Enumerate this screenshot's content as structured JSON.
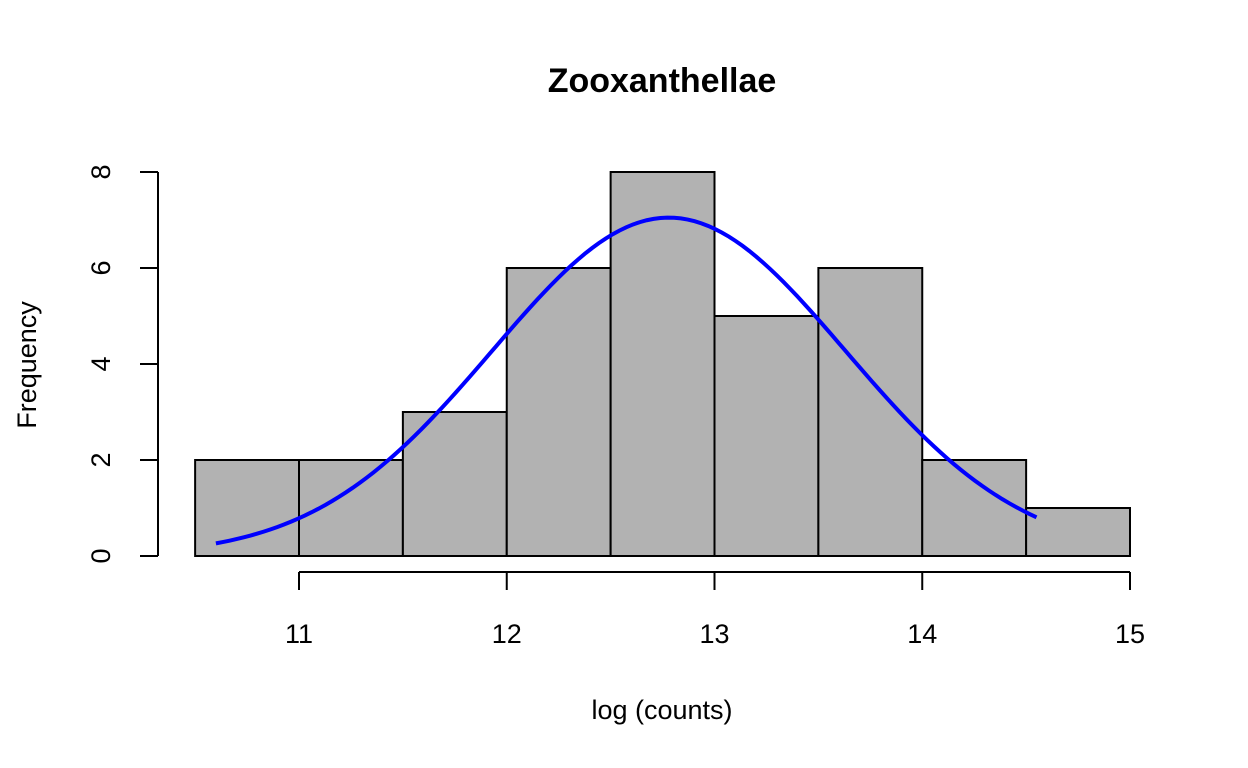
{
  "chart_data": {
    "type": "bar",
    "title": "Zooxanthellae",
    "xlabel": "log (counts)",
    "ylabel": "Frequency",
    "bins": [
      {
        "start": 10.5,
        "end": 11.0,
        "count": 2
      },
      {
        "start": 11.0,
        "end": 11.5,
        "count": 2
      },
      {
        "start": 11.5,
        "end": 12.0,
        "count": 3
      },
      {
        "start": 12.0,
        "end": 12.5,
        "count": 6
      },
      {
        "start": 12.5,
        "end": 13.0,
        "count": 8
      },
      {
        "start": 13.0,
        "end": 13.5,
        "count": 5
      },
      {
        "start": 13.5,
        "end": 14.0,
        "count": 6
      },
      {
        "start": 14.0,
        "end": 14.5,
        "count": 2
      },
      {
        "start": 14.5,
        "end": 15.0,
        "count": 1
      }
    ],
    "xlim": [
      10.5,
      15.0
    ],
    "ylim": [
      0,
      8
    ],
    "xticks": [
      "11",
      "12",
      "13",
      "14",
      "15"
    ],
    "yticks": [
      "0",
      "2",
      "4",
      "6",
      "8"
    ],
    "grid": false,
    "overlay": {
      "type": "normal-curve",
      "color": "#0000ff",
      "x_range": [
        10.6,
        14.55
      ],
      "mean": 12.78,
      "sd": 0.85,
      "peak": 7.05
    },
    "bar_color": "#b2b2b2"
  }
}
